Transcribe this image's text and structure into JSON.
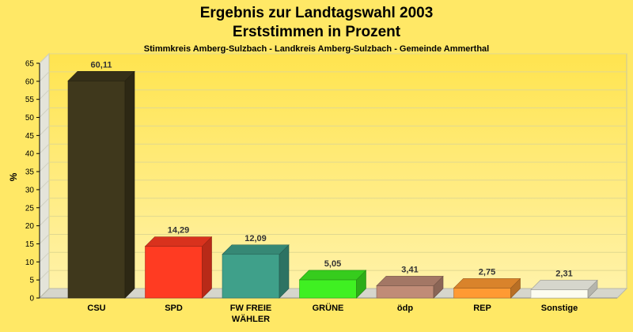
{
  "chart_data": {
    "type": "bar",
    "title": "Ergebnis zur Landtagswahl 2003",
    "subtitle": "Erststimmen in Prozent",
    "caption": "Stimmkreis Amberg-Sulzbach - Landkreis Amberg-Sulzbach - Gemeinde Ammerthal",
    "ylabel": "%",
    "ylim": [
      0,
      65
    ],
    "yticks": [
      "0",
      "5",
      "10",
      "15",
      "20",
      "25",
      "30",
      "35",
      "40",
      "45",
      "50",
      "55",
      "60",
      "65"
    ],
    "grid": true,
    "categories": [
      "CSU",
      "SPD",
      "FW FREIE WÄHLER",
      "GRÜNE",
      "ödp",
      "REP",
      "Sonstige"
    ],
    "values": [
      60.11,
      14.29,
      12.09,
      5.05,
      3.41,
      2.75,
      2.31
    ],
    "value_labels": [
      "60,11",
      "14,29",
      "12,09",
      "5,05",
      "3,41",
      "2,75",
      "2,31"
    ],
    "colors": [
      "#3F381C",
      "#FF3B22",
      "#3FA08A",
      "#3FF022",
      "#C08C77",
      "#FF9A33",
      "#FCFCF0"
    ]
  }
}
